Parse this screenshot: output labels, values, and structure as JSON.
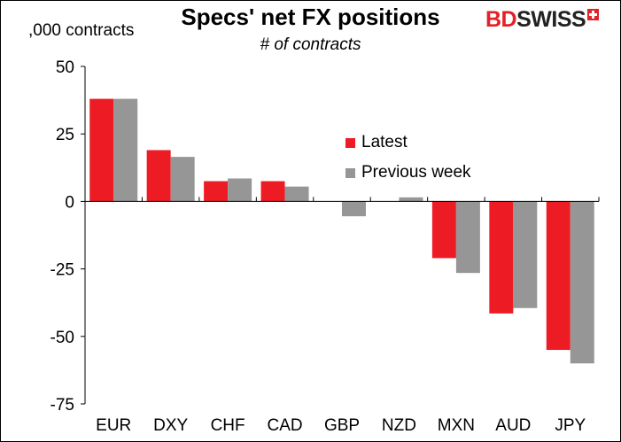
{
  "header": {
    "title": "Specs' net FX positions",
    "subtitle": "# of contracts",
    "unit_label": ",000 contracts"
  },
  "logo": {
    "text_bd": "BD",
    "text_swiss": "SWISS",
    "icon": "swiss-cross-icon"
  },
  "colors": {
    "latest": "#ed1c24",
    "previous": "#969696",
    "axis": "#000000"
  },
  "chart_data": {
    "type": "bar",
    "categories": [
      "EUR",
      "DXY",
      "CHF",
      "CAD",
      "GBP",
      "NZD",
      "MXN",
      "AUD",
      "JPY"
    ],
    "series": [
      {
        "name": "Latest",
        "values": [
          38,
          19,
          7.5,
          7.5,
          0,
          0,
          -21,
          -41.5,
          -55
        ]
      },
      {
        "name": "Previous week",
        "values": [
          38,
          16.5,
          8.5,
          5.5,
          -5.5,
          1.5,
          -26.5,
          -39.5,
          -60
        ]
      }
    ],
    "ylim": [
      -75,
      50
    ],
    "yticks": [
      50,
      25,
      0,
      -25,
      -50,
      -75
    ],
    "xlabel": "",
    "ylabel": "",
    "grid": false,
    "legend_position": "center-right"
  }
}
